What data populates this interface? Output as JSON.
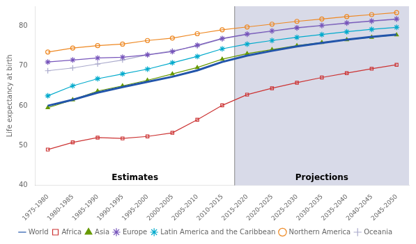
{
  "chart_data": {
    "type": "line",
    "categories": [
      "1975-1980",
      "1980-1985",
      "1985-1990",
      "1990-1995",
      "1995-2000",
      "2000-2005",
      "2005-2010",
      "2010-2015",
      "2015-2020",
      "2020-2025",
      "2025-2030",
      "2030-2035",
      "2035-2040",
      "2040-2045",
      "2045-2050"
    ],
    "series": [
      {
        "name": "World",
        "color": "#2255aa",
        "marker": "none",
        "values": [
          60.0,
          61.5,
          63.3,
          64.7,
          66.0,
          67.3,
          68.9,
          71.0,
          72.6,
          73.8,
          74.9,
          75.8,
          76.6,
          77.3,
          77.9
        ]
      },
      {
        "name": "Africa",
        "color": "#cc3333",
        "marker": "square",
        "values": [
          49.0,
          50.8,
          52.0,
          51.8,
          52.3,
          53.2,
          56.5,
          60.1,
          62.8,
          64.4,
          65.8,
          67.1,
          68.2,
          69.3,
          70.3
        ]
      },
      {
        "name": "Asia",
        "color": "#669900",
        "marker": "triangle",
        "values": [
          59.5,
          61.5,
          63.7,
          65.0,
          66.4,
          68.0,
          69.6,
          71.7,
          73.1,
          74.1,
          75.1,
          75.9,
          76.6,
          77.2,
          77.8
        ]
      },
      {
        "name": "Europe",
        "color": "#7755bb",
        "marker": "star",
        "values": [
          71.0,
          71.5,
          72.0,
          72.2,
          72.8,
          73.6,
          75.2,
          76.9,
          78.0,
          78.8,
          79.6,
          80.2,
          80.8,
          81.3,
          81.8
        ]
      },
      {
        "name": "Latin America and the Caribbean",
        "color": "#00aacc",
        "marker": "star",
        "values": [
          62.5,
          65.0,
          66.8,
          68.0,
          69.2,
          70.8,
          72.4,
          74.3,
          75.5,
          76.4,
          77.2,
          77.9,
          78.6,
          79.2,
          79.7
        ]
      },
      {
        "name": "Northern America",
        "color": "#ee8822",
        "marker": "circle",
        "values": [
          73.5,
          74.5,
          75.1,
          75.5,
          76.4,
          77.0,
          78.1,
          79.1,
          79.8,
          80.5,
          81.2,
          81.8,
          82.4,
          82.9,
          83.4
        ]
      },
      {
        "name": "Oceania",
        "color": "#aaaacc",
        "marker": "plus",
        "values": [
          68.8,
          69.5,
          70.5,
          71.5,
          72.8,
          73.8,
          75.0,
          76.8,
          77.9,
          78.7,
          79.5,
          80.1,
          80.7,
          81.2,
          81.7
        ]
      }
    ],
    "ylabel": "Life expectancy at birth",
    "ylim": [
      40,
      85
    ],
    "yticks": [
      40,
      50,
      60,
      70,
      80
    ],
    "grid": false,
    "legend": "bottom",
    "regions": [
      {
        "label": "Estimates",
        "from": "1975-1980",
        "to": "2010-2015"
      },
      {
        "label": "Projections",
        "from": "2015-2020",
        "to": "2045-2050",
        "color": "#d8dae8"
      }
    ]
  }
}
